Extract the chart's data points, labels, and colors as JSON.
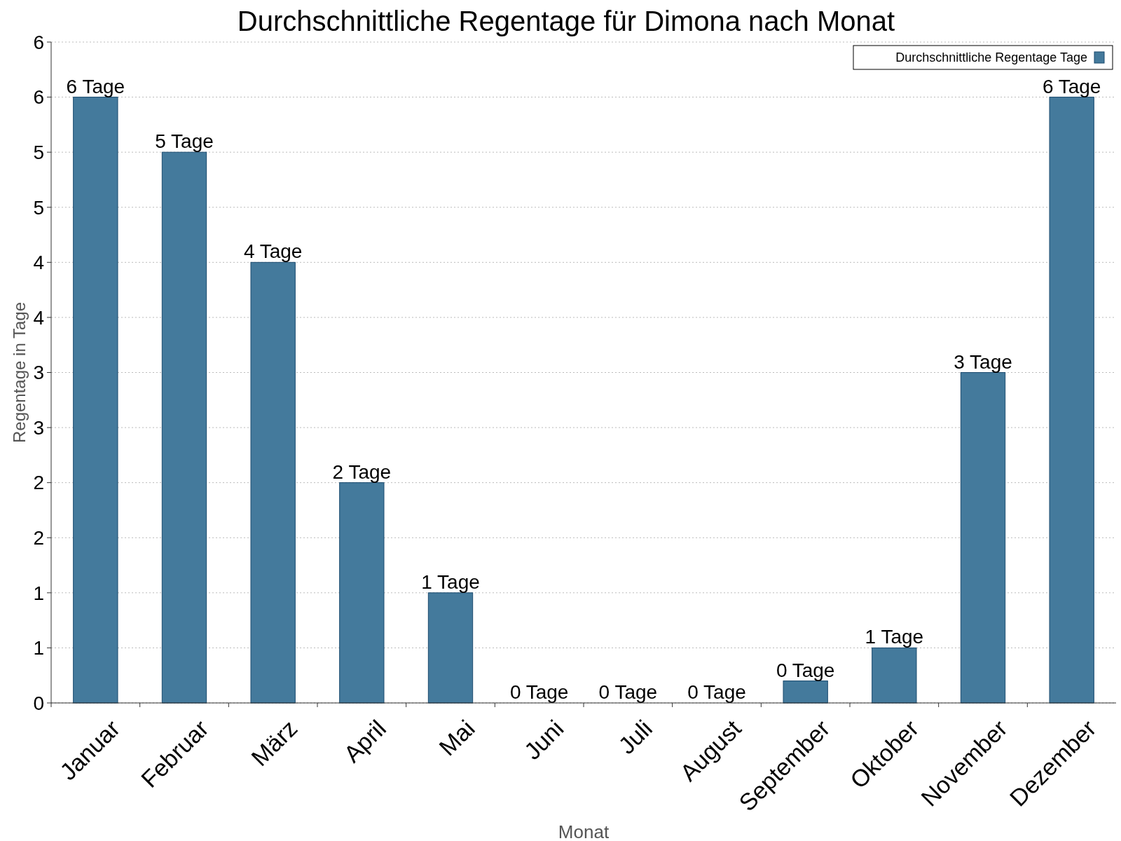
{
  "chart_data": {
    "type": "bar",
    "title": "Durchschnittliche Regentage für Dimona nach Monat",
    "xlabel": "Monat",
    "ylabel": "Regentage in Tage",
    "categories": [
      "Januar",
      "Februar",
      "März",
      "April",
      "Mai",
      "Juni",
      "Juli",
      "August",
      "September",
      "Oktober",
      "November",
      "Dezember"
    ],
    "series": [
      {
        "name": "Durchschnittliche Regentage Tage",
        "color": "#447a9c",
        "values": [
          5.5,
          5,
          4,
          2,
          1,
          0,
          0,
          0,
          0.2,
          0.5,
          3,
          5.5
        ],
        "value_labels": [
          "6 Tage",
          "5 Tage",
          "4 Tage",
          "2 Tage",
          "1 Tage",
          "0 Tage",
          "0 Tage",
          "0 Tage",
          "0 Tage",
          "1 Tage",
          "3 Tage",
          "6 Tage"
        ]
      }
    ],
    "ylim": [
      0,
      6
    ],
    "yticks": [
      0,
      {
        "value": 0.5,
        "label": "1"
      },
      1,
      {
        "value": 1.5,
        "label": "2"
      },
      2,
      {
        "value": 2.5,
        "label": "3"
      },
      3,
      {
        "value": 3.5,
        "label": "4"
      },
      4,
      {
        "value": 4.5,
        "label": "5"
      },
      5,
      {
        "value": 5.5,
        "label": "6"
      },
      6
    ],
    "grid": "y",
    "legend": "top right"
  }
}
